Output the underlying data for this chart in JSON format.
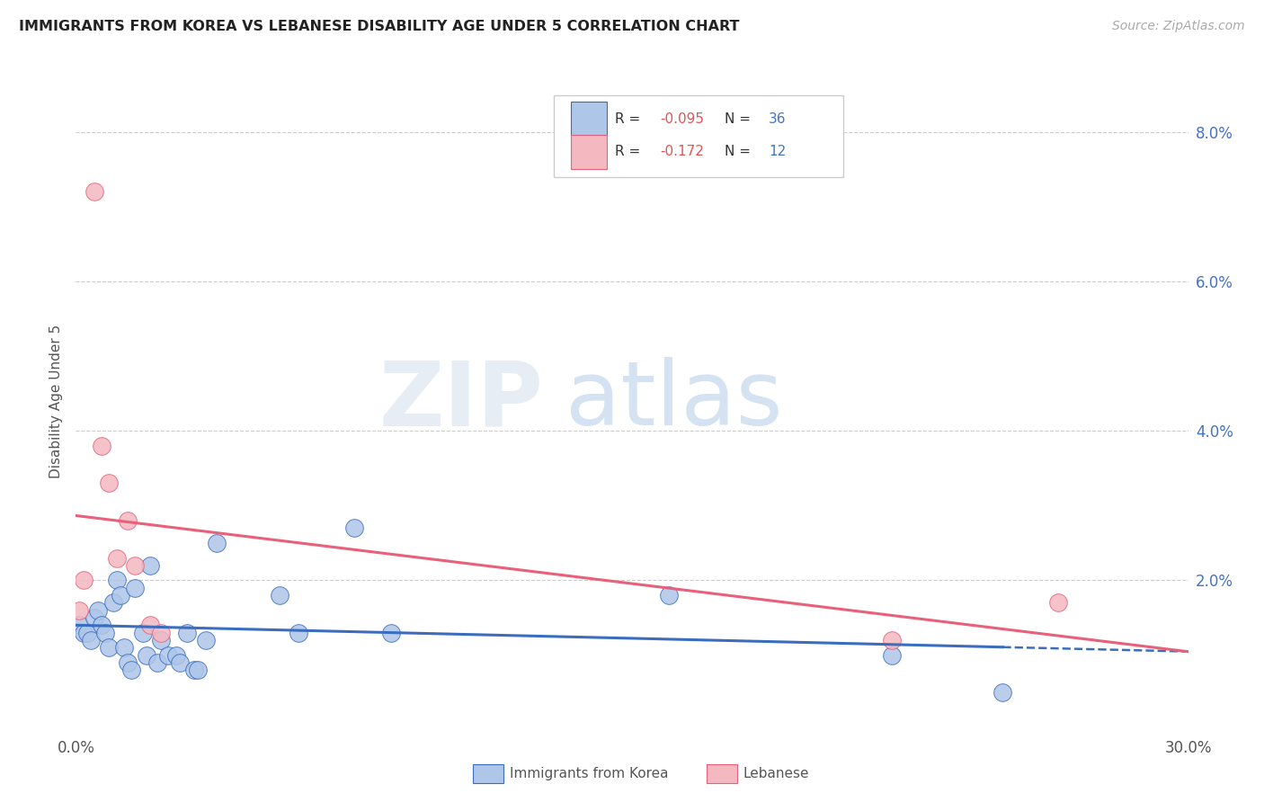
{
  "title": "IMMIGRANTS FROM KOREA VS LEBANESE DISABILITY AGE UNDER 5 CORRELATION CHART",
  "source": "Source: ZipAtlas.com",
  "ylabel": "Disability Age Under 5",
  "xlim": [
    0.0,
    0.3
  ],
  "ylim": [
    0.0,
    0.088
  ],
  "korea_r": "-0.095",
  "korea_n": "36",
  "lebanese_r": "-0.172",
  "lebanese_n": "12",
  "korea_color": "#aec6e8",
  "lebanese_color": "#f4b8c1",
  "korea_line_color": "#3b6dbf",
  "lebanese_line_color": "#e8607a",
  "watermark_zip": "ZIP",
  "watermark_atlas": "atlas",
  "korea_x": [
    0.001,
    0.002,
    0.003,
    0.004,
    0.005,
    0.006,
    0.007,
    0.008,
    0.009,
    0.01,
    0.011,
    0.012,
    0.013,
    0.014,
    0.015,
    0.016,
    0.018,
    0.019,
    0.02,
    0.022,
    0.023,
    0.025,
    0.027,
    0.028,
    0.03,
    0.032,
    0.033,
    0.035,
    0.038,
    0.055,
    0.06,
    0.075,
    0.085,
    0.16,
    0.22,
    0.25
  ],
  "korea_y": [
    0.014,
    0.013,
    0.013,
    0.012,
    0.015,
    0.016,
    0.014,
    0.013,
    0.011,
    0.017,
    0.02,
    0.018,
    0.011,
    0.009,
    0.008,
    0.019,
    0.013,
    0.01,
    0.022,
    0.009,
    0.012,
    0.01,
    0.01,
    0.009,
    0.013,
    0.008,
    0.008,
    0.012,
    0.025,
    0.018,
    0.013,
    0.027,
    0.013,
    0.018,
    0.01,
    0.005
  ],
  "lebanese_x": [
    0.001,
    0.002,
    0.005,
    0.007,
    0.009,
    0.011,
    0.014,
    0.016,
    0.02,
    0.023,
    0.22,
    0.265
  ],
  "lebanese_y": [
    0.016,
    0.02,
    0.072,
    0.038,
    0.033,
    0.023,
    0.028,
    0.022,
    0.014,
    0.013,
    0.012,
    0.017
  ]
}
